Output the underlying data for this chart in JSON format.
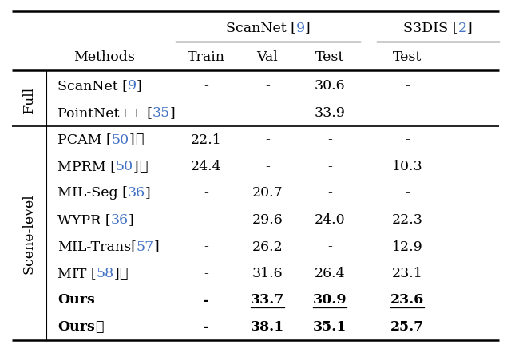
{
  "figsize": [
    6.4,
    4.37
  ],
  "dpi": 100,
  "background_color": "#ffffff",
  "ref_color": "#4472c4",
  "text_color": "#000000",
  "font_size": 12.5,
  "header_font_size": 12.5,
  "section_font_size": 12.5,
  "rows": [
    {
      "section": "Full",
      "method_parts": [
        [
          "ScanNet [",
          "black"
        ],
        [
          "9",
          "blue"
        ],
        [
          "]",
          "black"
        ]
      ],
      "bold": false,
      "star": false,
      "vals": [
        "-",
        "-",
        "30.6",
        "-"
      ],
      "ul": [
        false,
        false,
        false,
        false
      ]
    },
    {
      "section": "Full",
      "method_parts": [
        [
          "PointNet++ [",
          "black"
        ],
        [
          "35",
          "blue"
        ],
        [
          "]",
          "black"
        ]
      ],
      "bold": false,
      "star": false,
      "vals": [
        "-",
        "-",
        "33.9",
        "-"
      ],
      "ul": [
        false,
        false,
        false,
        false
      ]
    },
    {
      "section": "Scene-level",
      "method_parts": [
        [
          "PCAM [",
          "black"
        ],
        [
          "50",
          "blue"
        ],
        [
          "]",
          "black"
        ]
      ],
      "bold": false,
      "star": true,
      "vals": [
        "22.1",
        "-",
        "-",
        "-"
      ],
      "ul": [
        false,
        false,
        false,
        false
      ]
    },
    {
      "section": "Scene-level",
      "method_parts": [
        [
          "MPRM [",
          "black"
        ],
        [
          "50",
          "blue"
        ],
        [
          "]",
          "black"
        ]
      ],
      "bold": false,
      "star": true,
      "vals": [
        "24.4",
        "-",
        "-",
        "10.3"
      ],
      "ul": [
        false,
        false,
        false,
        false
      ]
    },
    {
      "section": "Scene-level",
      "method_parts": [
        [
          "MIL-Seg [",
          "black"
        ],
        [
          "36",
          "blue"
        ],
        [
          "]",
          "black"
        ]
      ],
      "bold": false,
      "star": false,
      "vals": [
        "-",
        "20.7",
        "-",
        "-"
      ],
      "ul": [
        false,
        false,
        false,
        false
      ]
    },
    {
      "section": "Scene-level",
      "method_parts": [
        [
          "WYPR [",
          "black"
        ],
        [
          "36",
          "blue"
        ],
        [
          "]",
          "black"
        ]
      ],
      "bold": false,
      "star": false,
      "vals": [
        "-",
        "29.6",
        "24.0",
        "22.3"
      ],
      "ul": [
        false,
        false,
        false,
        false
      ]
    },
    {
      "section": "Scene-level",
      "method_parts": [
        [
          "MIL-Trans[",
          "black"
        ],
        [
          "57",
          "blue"
        ],
        [
          "]",
          "black"
        ]
      ],
      "bold": false,
      "star": false,
      "vals": [
        "-",
        "26.2",
        "-",
        "12.9"
      ],
      "ul": [
        false,
        false,
        false,
        false
      ]
    },
    {
      "section": "Scene-level",
      "method_parts": [
        [
          "MIT [",
          "black"
        ],
        [
          "58",
          "blue"
        ],
        [
          "]",
          "black"
        ]
      ],
      "bold": false,
      "star": true,
      "vals": [
        "-",
        "31.6",
        "26.4",
        "23.1"
      ],
      "ul": [
        false,
        false,
        false,
        false
      ]
    },
    {
      "section": "Scene-level",
      "method_parts": [
        [
          "Ours",
          "black"
        ]
      ],
      "bold": true,
      "star": false,
      "vals": [
        "-",
        "33.7",
        "30.9",
        "23.6"
      ],
      "ul": [
        false,
        true,
        true,
        true
      ]
    },
    {
      "section": "Scene-level",
      "method_parts": [
        [
          "Ours",
          "black"
        ]
      ],
      "bold": true,
      "star": true,
      "vals": [
        "-",
        "38.1",
        "35.1",
        "25.7"
      ],
      "ul": [
        false,
        false,
        false,
        false
      ]
    }
  ]
}
